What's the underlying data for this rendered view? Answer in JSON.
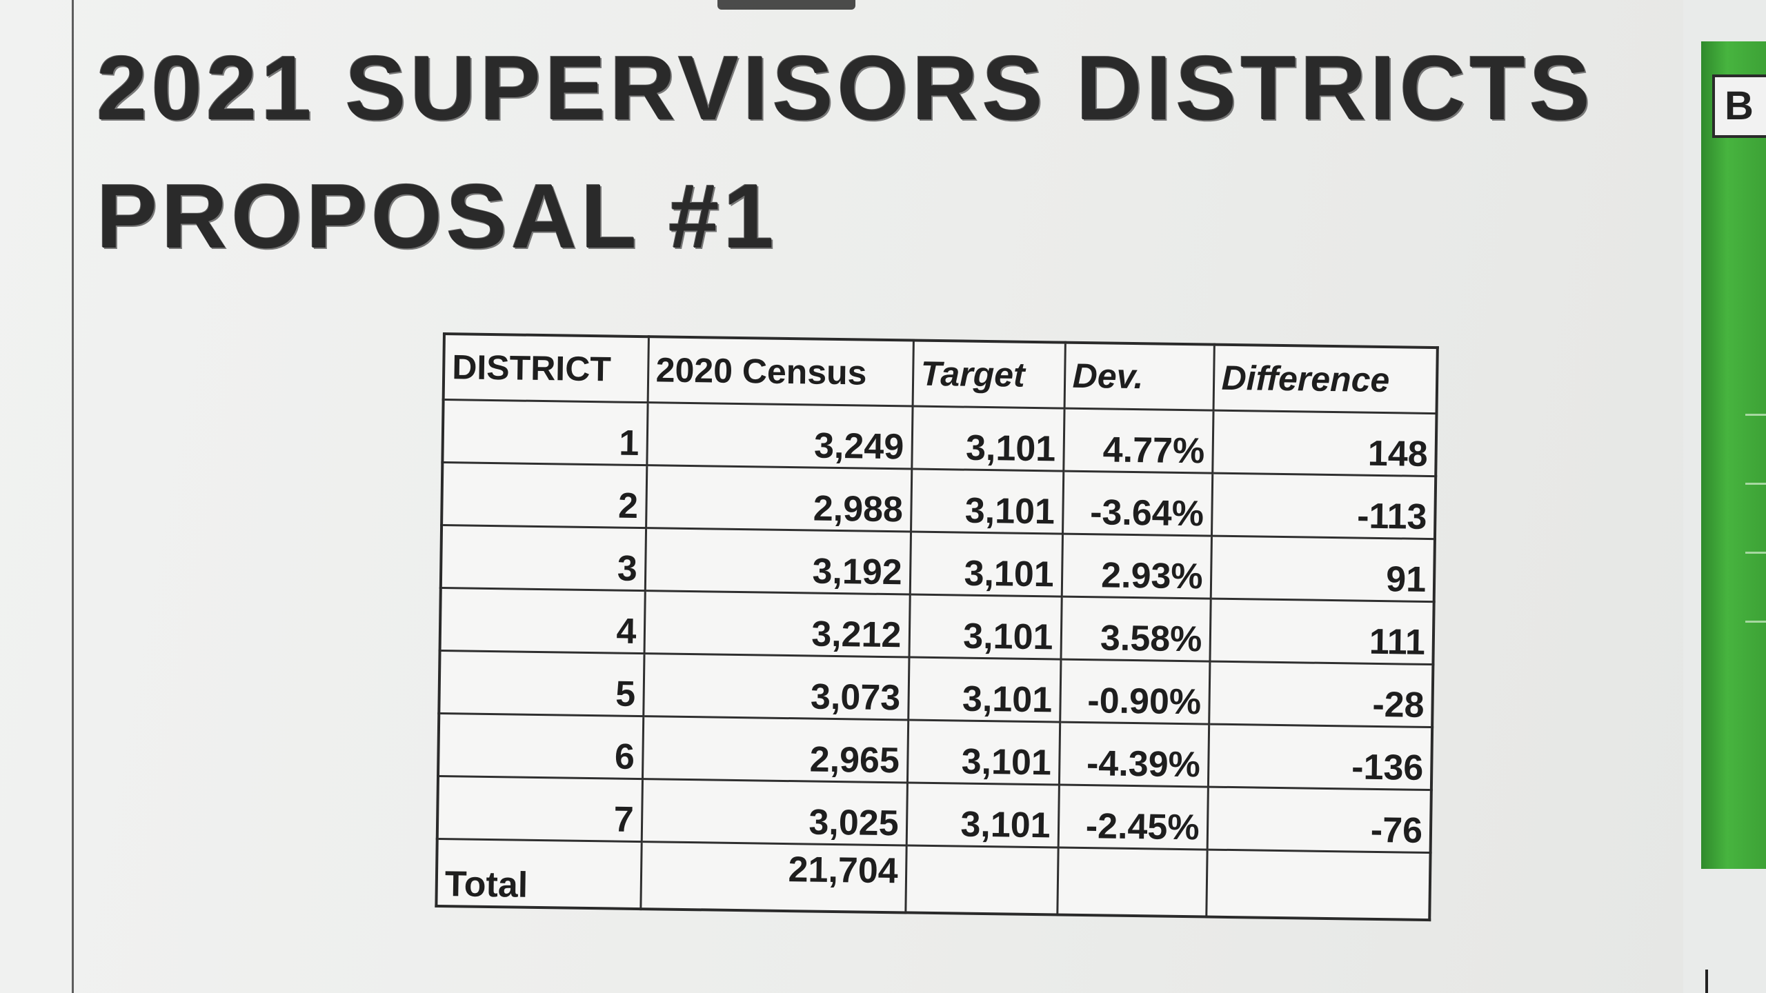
{
  "document": {
    "title_line1": "2021 SUPERVISORS DISTRICTS",
    "title_line2": "PROPOSAL #1",
    "side_label": "B"
  },
  "table": {
    "headers": [
      "DISTRICT",
      "2020 Census",
      "Target",
      "Dev.",
      "Difference"
    ],
    "rows": [
      {
        "district": "1",
        "census": "3,249",
        "target": "3,101",
        "dev": "4.77%",
        "difference": "148"
      },
      {
        "district": "2",
        "census": "2,988",
        "target": "3,101",
        "dev": "-3.64%",
        "difference": "-113"
      },
      {
        "district": "3",
        "census": "3,192",
        "target": "3,101",
        "dev": "2.93%",
        "difference": "91"
      },
      {
        "district": "4",
        "census": "3,212",
        "target": "3,101",
        "dev": "3.58%",
        "difference": "111"
      },
      {
        "district": "5",
        "census": "3,073",
        "target": "3,101",
        "dev": "-0.90%",
        "difference": "-28"
      },
      {
        "district": "6",
        "census": "2,965",
        "target": "3,101",
        "dev": "-4.39%",
        "difference": "-136"
      },
      {
        "district": "7",
        "census": "3,025",
        "target": "3,101",
        "dev": "-2.45%",
        "difference": "-76"
      }
    ],
    "total_row": {
      "label": "Total",
      "census": "21,704",
      "target": "",
      "dev": "",
      "difference": ""
    }
  },
  "colors": {
    "paper": "#eeefed",
    "ink": "#1e1e1e",
    "green_panel": "#3da236"
  }
}
